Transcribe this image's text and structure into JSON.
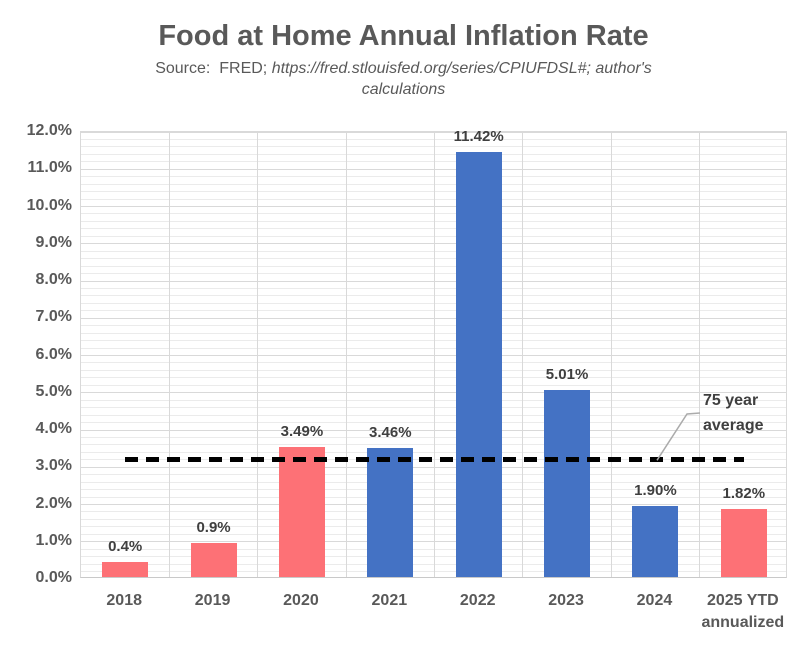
{
  "header": {
    "title": "Food at Home Annual Inflation Rate",
    "source_prefix": "Source:  FRED; ",
    "source_italic": "https://fred.stlouisfed.org/series/CPIUFDSL#; author's calculations"
  },
  "chart_data": {
    "type": "bar",
    "title": "Food at Home Annual Inflation Rate",
    "source_note": "Source:  FRED; https://fred.stlouisfed.org/series/CPIUFDSL#; author's calculations",
    "categories": [
      "2018",
      "2019",
      "2020",
      "2021",
      "2022",
      "2023",
      "2024",
      "2025 YTD annualized"
    ],
    "category_tick_lines": [
      [
        "2018"
      ],
      [
        "2019"
      ],
      [
        "2020"
      ],
      [
        "2021"
      ],
      [
        "2022"
      ],
      [
        "2023"
      ],
      [
        "2024"
      ],
      [
        "2025 YTD",
        "annualized"
      ]
    ],
    "values": [
      0.4,
      0.9,
      3.49,
      3.46,
      11.42,
      5.01,
      1.9,
      1.82
    ],
    "value_labels": [
      "0.4%",
      "0.9%",
      "3.49%",
      "3.46%",
      "11.42%",
      "5.01%",
      "1.90%",
      "1.82%"
    ],
    "bar_colors": [
      "red",
      "red",
      "red",
      "blue",
      "blue",
      "blue",
      "blue",
      "red"
    ],
    "xlabel": "",
    "ylabel": "",
    "ylim": [
      0,
      12
    ],
    "y_major_step": 1,
    "y_minor_step": 0.2,
    "y_tick_labels": [
      "0.0%",
      "1.0%",
      "2.0%",
      "3.0%",
      "4.0%",
      "5.0%",
      "6.0%",
      "7.0%",
      "8.0%",
      "9.0%",
      "10.0%",
      "11.0%",
      "12.0%"
    ],
    "grid": true,
    "legend": "none",
    "reference_line": {
      "value": 3.2,
      "label": "75 year average",
      "style": "dashed",
      "color": "#000000"
    },
    "palette": {
      "blue": "#4472C4",
      "red": "#FD7176"
    }
  },
  "colors": {
    "title_text": "#595959",
    "axis_text": "#595959",
    "label_text": "#3F3F3F",
    "major_grid": "#D9D9D9",
    "minor_grid": "#EBEBEB",
    "reference_line": "#000000",
    "callout_line": "#ABABAB"
  }
}
